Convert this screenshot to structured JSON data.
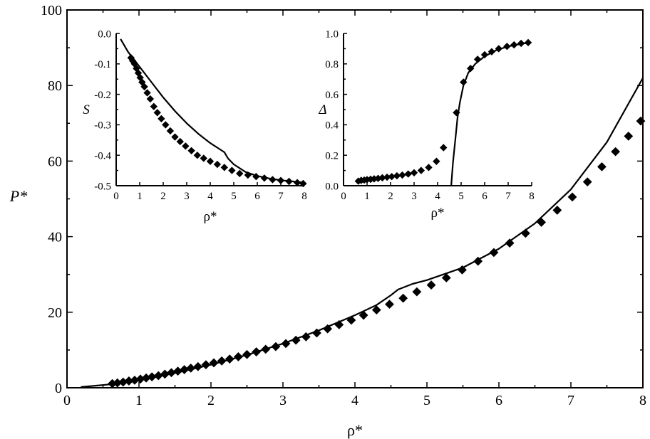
{
  "chart_data": [
    {
      "type": "scatter",
      "panel": "main",
      "xlabel": "ρ*",
      "ylabel": "P*",
      "xlim": [
        0,
        8
      ],
      "ylim": [
        0,
        100
      ],
      "x_ticks": [
        "0",
        "1",
        "2",
        "3",
        "4",
        "5",
        "6",
        "7",
        "8"
      ],
      "y_ticks": [
        "0",
        "20",
        "40",
        "60",
        "80",
        "100"
      ],
      "series": [
        {
          "style": "markers",
          "marker": "diamond",
          "x": [
            0.63,
            0.7,
            0.78,
            0.86,
            0.94,
            1.02,
            1.1,
            1.18,
            1.27,
            1.36,
            1.45,
            1.54,
            1.63,
            1.72,
            1.82,
            1.93,
            2.04,
            2.15,
            2.26,
            2.38,
            2.5,
            2.63,
            2.76,
            2.9,
            3.04,
            3.18,
            3.32,
            3.47,
            3.62,
            3.78,
            3.95,
            4.12,
            4.3,
            4.48,
            4.67,
            4.86,
            5.06,
            5.27,
            5.49,
            5.71,
            5.93,
            6.15,
            6.37,
            6.59,
            6.81,
            7.02,
            7.23,
            7.43,
            7.62,
            7.8,
            7.97
          ],
          "y": [
            1.1,
            1.3,
            1.5,
            1.8,
            2.0,
            2.3,
            2.6,
            2.9,
            3.2,
            3.6,
            4.0,
            4.4,
            4.8,
            5.2,
            5.6,
            6.1,
            6.6,
            7.1,
            7.6,
            8.2,
            8.8,
            9.5,
            10.2,
            10.9,
            11.7,
            12.6,
            13.5,
            14.5,
            15.6,
            16.7,
            17.9,
            19.2,
            20.6,
            22.1,
            23.7,
            25.4,
            27.2,
            29.1,
            31.2,
            33.5,
            35.8,
            38.3,
            40.9,
            43.8,
            47.0,
            50.5,
            54.5,
            58.5,
            62.5,
            66.6,
            70.6
          ]
        },
        {
          "style": "line",
          "x": [
            0.2,
            0.6,
            1.0,
            1.5,
            2.0,
            2.5,
            3.0,
            3.5,
            4.0,
            4.3,
            4.5,
            4.6,
            4.8,
            5.0,
            5.5,
            6.0,
            6.5,
            7.0,
            7.5,
            8.0
          ],
          "y": [
            0.2,
            0.9,
            2.1,
            3.9,
            6.1,
            8.7,
            11.7,
            15.2,
            19.2,
            21.9,
            24.5,
            26.0,
            27.5,
            28.5,
            31.8,
            36.8,
            43.5,
            52.5,
            65.0,
            82.0
          ]
        }
      ]
    },
    {
      "type": "scatter",
      "panel": "inset-left",
      "xlabel": "ρ*",
      "ylabel": "S",
      "xlim": [
        0,
        8
      ],
      "ylim": [
        -0.5,
        0.0
      ],
      "x_ticks": [
        "0",
        "1",
        "2",
        "3",
        "4",
        "5",
        "6",
        "7",
        "8"
      ],
      "y_ticks": [
        "0.0",
        "-0.1",
        "-0.2",
        "-0.3",
        "-0.4",
        "-0.5"
      ],
      "series": [
        {
          "style": "markers",
          "marker": "diamond",
          "x": [
            0.63,
            0.7,
            0.78,
            0.86,
            0.94,
            1.02,
            1.1,
            1.2,
            1.32,
            1.45,
            1.6,
            1.75,
            1.92,
            2.1,
            2.3,
            2.5,
            2.72,
            2.95,
            3.2,
            3.45,
            3.72,
            4.0,
            4.3,
            4.6,
            4.92,
            5.25,
            5.6,
            5.95,
            6.3,
            6.65,
            7.0,
            7.35,
            7.7,
            7.95
          ],
          "y": [
            -0.08,
            -0.09,
            -0.1,
            -0.115,
            -0.13,
            -0.145,
            -0.16,
            -0.175,
            -0.195,
            -0.215,
            -0.24,
            -0.26,
            -0.28,
            -0.3,
            -0.32,
            -0.34,
            -0.355,
            -0.37,
            -0.385,
            -0.4,
            -0.41,
            -0.42,
            -0.43,
            -0.44,
            -0.45,
            -0.46,
            -0.465,
            -0.47,
            -0.475,
            -0.48,
            -0.483,
            -0.486,
            -0.49,
            -0.493
          ]
        },
        {
          "style": "line",
          "x": [
            0.2,
            0.5,
            1.0,
            1.5,
            2.0,
            2.5,
            3.0,
            3.5,
            4.0,
            4.3,
            4.6,
            4.75,
            5.0,
            5.5,
            6.0,
            6.5,
            7.0,
            7.5,
            8.0
          ],
          "y": [
            -0.02,
            -0.06,
            -0.11,
            -0.16,
            -0.21,
            -0.255,
            -0.295,
            -0.33,
            -0.36,
            -0.375,
            -0.39,
            -0.41,
            -0.43,
            -0.455,
            -0.468,
            -0.476,
            -0.482,
            -0.486,
            -0.49
          ]
        }
      ]
    },
    {
      "type": "scatter",
      "panel": "inset-right",
      "xlabel": "ρ*",
      "ylabel": "Δ",
      "xlim": [
        0,
        8
      ],
      "ylim": [
        0.0,
        1.0
      ],
      "x_ticks": [
        "0",
        "1",
        "2",
        "3",
        "4",
        "5",
        "6",
        "7",
        "8"
      ],
      "y_ticks": [
        "0.0",
        "0.2",
        "0.4",
        "0.6",
        "0.8",
        "1.0"
      ],
      "series": [
        {
          "style": "markers",
          "marker": "diamond",
          "x": [
            0.63,
            0.75,
            0.88,
            1.0,
            1.15,
            1.3,
            1.47,
            1.65,
            1.85,
            2.05,
            2.27,
            2.5,
            2.75,
            3.0,
            3.3,
            3.62,
            3.95,
            4.25,
            4.8,
            5.1,
            5.4,
            5.7,
            6.0,
            6.3,
            6.6,
            6.95,
            7.25,
            7.55,
            7.85
          ],
          "y": [
            0.03,
            0.035,
            0.037,
            0.04,
            0.042,
            0.045,
            0.048,
            0.052,
            0.056,
            0.06,
            0.065,
            0.07,
            0.077,
            0.085,
            0.1,
            0.12,
            0.16,
            0.25,
            0.48,
            0.68,
            0.77,
            0.83,
            0.86,
            0.88,
            0.9,
            0.915,
            0.925,
            0.935,
            0.94
          ]
        },
        {
          "style": "line",
          "x": [
            4.58,
            4.65,
            4.75,
            4.85,
            4.95,
            5.1,
            5.3,
            5.6,
            6.0,
            6.5,
            7.0,
            7.5,
            7.9
          ],
          "y": [
            0.0,
            0.15,
            0.3,
            0.45,
            0.55,
            0.66,
            0.74,
            0.8,
            0.85,
            0.89,
            0.915,
            0.93,
            0.94
          ]
        }
      ]
    }
  ]
}
